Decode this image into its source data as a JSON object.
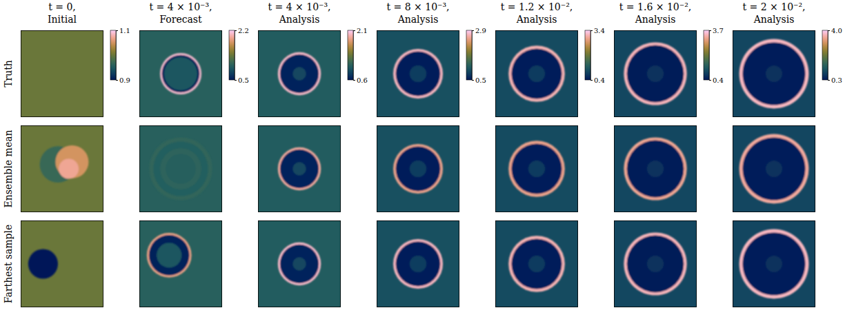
{
  "chart_data": {
    "type": "heatmap",
    "tick_labels": false,
    "xlim": [
      0,
      1
    ],
    "ylim": [
      0,
      1
    ],
    "rows": [
      "Truth",
      "Ensemble mean",
      "Farthest sample"
    ],
    "columns": [
      {
        "title": [
          "t = 0,",
          "Initial"
        ],
        "colorbar": {
          "range": [
            0.9,
            1.1
          ],
          "ticks": [
            0.9,
            1.1
          ]
        }
      },
      {
        "title": [
          "t = 4 × 10⁻³,",
          "Forecast"
        ],
        "colorbar": {
          "range": [
            0.5,
            2.2
          ],
          "ticks": [
            0.5,
            2.2
          ]
        }
      },
      {
        "title": [
          "t = 4 × 10⁻³,",
          "Analysis"
        ],
        "colorbar": {
          "range": [
            0.6,
            2.1
          ],
          "ticks": [
            0.6,
            2.1
          ]
        }
      },
      {
        "title": [
          "t = 8 × 10⁻³,",
          "Analysis"
        ],
        "colorbar": {
          "range": [
            0.5,
            2.9
          ],
          "ticks": [
            0.5,
            2.9
          ]
        }
      },
      {
        "title": [
          "t = 1.2 × 10⁻²,",
          "Analysis"
        ],
        "colorbar": {
          "range": [
            0.4,
            3.4
          ],
          "ticks": [
            0.4,
            3.4
          ]
        }
      },
      {
        "title": [
          "t = 1.6 × 10⁻²,",
          "Analysis"
        ],
        "colorbar": {
          "range": [
            0.4,
            3.7
          ],
          "ticks": [
            0.4,
            3.7
          ]
        }
      },
      {
        "title": [
          "t = 2 × 10⁻²,",
          "Analysis"
        ],
        "colorbar": {
          "range": [
            0.3,
            4.0
          ],
          "ticks": [
            0.3,
            {
              "value": 4,
              "label": "4.0"
            }
          ]
        }
      }
    ],
    "panels": [
      [
        {
          "background": 1.0,
          "disks": []
        },
        {
          "background": 1.0,
          "disks": [
            {
              "cx": 0.5,
              "cy": 0.5,
              "r": 0.25,
              "value": 2.1
            },
            {
              "cx": 0.5,
              "cy": 0.5,
              "r": 0.228,
              "value": 0.55
            },
            {
              "cx": 0.5,
              "cy": 0.5,
              "r": 0.2,
              "value": 0.9
            }
          ]
        },
        {
          "background": 1.0,
          "disks": [
            {
              "cx": 0.5,
              "cy": 0.5,
              "r": 0.26,
              "value": 2.0
            },
            {
              "cx": 0.5,
              "cy": 0.5,
              "r": 0.235,
              "value": 0.65
            },
            {
              "cx": 0.5,
              "cy": 0.5,
              "r": 0.08,
              "value": 0.85
            }
          ]
        },
        {
          "background": 1.0,
          "disks": [
            {
              "cx": 0.5,
              "cy": 0.5,
              "r": 0.3,
              "value": 2.7
            },
            {
              "cx": 0.5,
              "cy": 0.5,
              "r": 0.27,
              "value": 0.55
            },
            {
              "cx": 0.5,
              "cy": 0.5,
              "r": 0.1,
              "value": 0.8
            }
          ]
        },
        {
          "background": 0.95,
          "disks": [
            {
              "cx": 0.5,
              "cy": 0.5,
              "r": 0.34,
              "value": 3.1
            },
            {
              "cx": 0.5,
              "cy": 0.5,
              "r": 0.305,
              "value": 0.45
            },
            {
              "cx": 0.5,
              "cy": 0.5,
              "r": 0.1,
              "value": 0.75
            }
          ]
        },
        {
          "background": 0.95,
          "disks": [
            {
              "cx": 0.5,
              "cy": 0.5,
              "r": 0.38,
              "value": 3.4
            },
            {
              "cx": 0.5,
              "cy": 0.5,
              "r": 0.345,
              "value": 0.42
            },
            {
              "cx": 0.5,
              "cy": 0.5,
              "r": 0.1,
              "value": 0.7
            }
          ]
        },
        {
          "background": 0.9,
          "disks": [
            {
              "cx": 0.5,
              "cy": 0.5,
              "r": 0.42,
              "value": 3.7
            },
            {
              "cx": 0.5,
              "cy": 0.5,
              "r": 0.38,
              "value": 0.35
            },
            {
              "cx": 0.5,
              "cy": 0.5,
              "r": 0.1,
              "value": 0.6
            }
          ]
        }
      ],
      [
        {
          "background": 1.0,
          "disks": [
            {
              "cx": 0.45,
              "cy": 0.45,
              "r": 0.22,
              "value": 0.97
            },
            {
              "cx": 0.62,
              "cy": 0.42,
              "r": 0.2,
              "value": 1.05
            },
            {
              "cx": 0.58,
              "cy": 0.5,
              "r": 0.12,
              "value": 1.07
            }
          ]
        },
        {
          "background": 1.0,
          "disks": [
            {
              "cx": 0.5,
              "cy": 0.5,
              "r": 0.38,
              "value": 1.05
            },
            {
              "cx": 0.5,
              "cy": 0.5,
              "r": 0.33,
              "value": 0.97
            },
            {
              "cx": 0.5,
              "cy": 0.5,
              "r": 0.25,
              "value": 1.03
            },
            {
              "cx": 0.5,
              "cy": 0.5,
              "r": 0.18,
              "value": 0.98
            }
          ]
        },
        {
          "background": 1.0,
          "disks": [
            {
              "cx": 0.5,
              "cy": 0.5,
              "r": 0.26,
              "value": 1.9
            },
            {
              "cx": 0.5,
              "cy": 0.5,
              "r": 0.235,
              "value": 0.65
            },
            {
              "cx": 0.5,
              "cy": 0.5,
              "r": 0.08,
              "value": 0.85
            }
          ]
        },
        {
          "background": 1.0,
          "disks": [
            {
              "cx": 0.5,
              "cy": 0.5,
              "r": 0.3,
              "value": 2.5
            },
            {
              "cx": 0.5,
              "cy": 0.5,
              "r": 0.27,
              "value": 0.55
            },
            {
              "cx": 0.5,
              "cy": 0.5,
              "r": 0.1,
              "value": 0.8
            }
          ]
        },
        {
          "background": 0.95,
          "disks": [
            {
              "cx": 0.5,
              "cy": 0.5,
              "r": 0.34,
              "value": 2.9
            },
            {
              "cx": 0.5,
              "cy": 0.5,
              "r": 0.305,
              "value": 0.45
            },
            {
              "cx": 0.5,
              "cy": 0.5,
              "r": 0.1,
              "value": 0.75
            }
          ]
        },
        {
          "background": 0.95,
          "disks": [
            {
              "cx": 0.5,
              "cy": 0.5,
              "r": 0.38,
              "value": 3.2
            },
            {
              "cx": 0.5,
              "cy": 0.5,
              "r": 0.345,
              "value": 0.42
            },
            {
              "cx": 0.5,
              "cy": 0.5,
              "r": 0.1,
              "value": 0.7
            }
          ]
        },
        {
          "background": 0.9,
          "disks": [
            {
              "cx": 0.5,
              "cy": 0.5,
              "r": 0.42,
              "value": 3.5
            },
            {
              "cx": 0.5,
              "cy": 0.5,
              "r": 0.38,
              "value": 0.35
            },
            {
              "cx": 0.5,
              "cy": 0.5,
              "r": 0.1,
              "value": 0.6
            }
          ]
        }
      ],
      [
        {
          "background": 1.0,
          "disks": [
            {
              "cx": 0.27,
              "cy": 0.5,
              "r": 0.18,
              "value": 0.9
            }
          ]
        },
        {
          "background": 1.0,
          "disks": [
            {
              "cx": 0.36,
              "cy": 0.4,
              "r": 0.27,
              "value": 1.9
            },
            {
              "cx": 0.36,
              "cy": 0.4,
              "r": 0.245,
              "value": 0.55
            },
            {
              "cx": 0.36,
              "cy": 0.4,
              "r": 0.15,
              "value": 0.9
            }
          ]
        },
        {
          "background": 1.0,
          "disks": [
            {
              "cx": 0.5,
              "cy": 0.5,
              "r": 0.26,
              "value": 2.0
            },
            {
              "cx": 0.5,
              "cy": 0.5,
              "r": 0.235,
              "value": 0.65
            },
            {
              "cx": 0.5,
              "cy": 0.5,
              "r": 0.08,
              "value": 0.85
            }
          ]
        },
        {
          "background": 1.0,
          "disks": [
            {
              "cx": 0.5,
              "cy": 0.5,
              "r": 0.3,
              "value": 2.7
            },
            {
              "cx": 0.5,
              "cy": 0.5,
              "r": 0.27,
              "value": 0.55
            },
            {
              "cx": 0.5,
              "cy": 0.5,
              "r": 0.1,
              "value": 0.8
            }
          ]
        },
        {
          "background": 0.95,
          "disks": [
            {
              "cx": 0.5,
              "cy": 0.5,
              "r": 0.34,
              "value": 3.1
            },
            {
              "cx": 0.5,
              "cy": 0.5,
              "r": 0.305,
              "value": 0.45
            },
            {
              "cx": 0.5,
              "cy": 0.5,
              "r": 0.1,
              "value": 0.75
            }
          ]
        },
        {
          "background": 0.95,
          "disks": [
            {
              "cx": 0.5,
              "cy": 0.5,
              "r": 0.38,
              "value": 3.4
            },
            {
              "cx": 0.5,
              "cy": 0.5,
              "r": 0.345,
              "value": 0.42
            },
            {
              "cx": 0.5,
              "cy": 0.5,
              "r": 0.1,
              "value": 0.7
            }
          ]
        },
        {
          "background": 0.9,
          "disks": [
            {
              "cx": 0.5,
              "cy": 0.5,
              "r": 0.42,
              "value": 3.7
            },
            {
              "cx": 0.5,
              "cy": 0.5,
              "r": 0.38,
              "value": 0.35
            },
            {
              "cx": 0.5,
              "cy": 0.5,
              "r": 0.1,
              "value": 0.6
            }
          ]
        }
      ]
    ]
  }
}
